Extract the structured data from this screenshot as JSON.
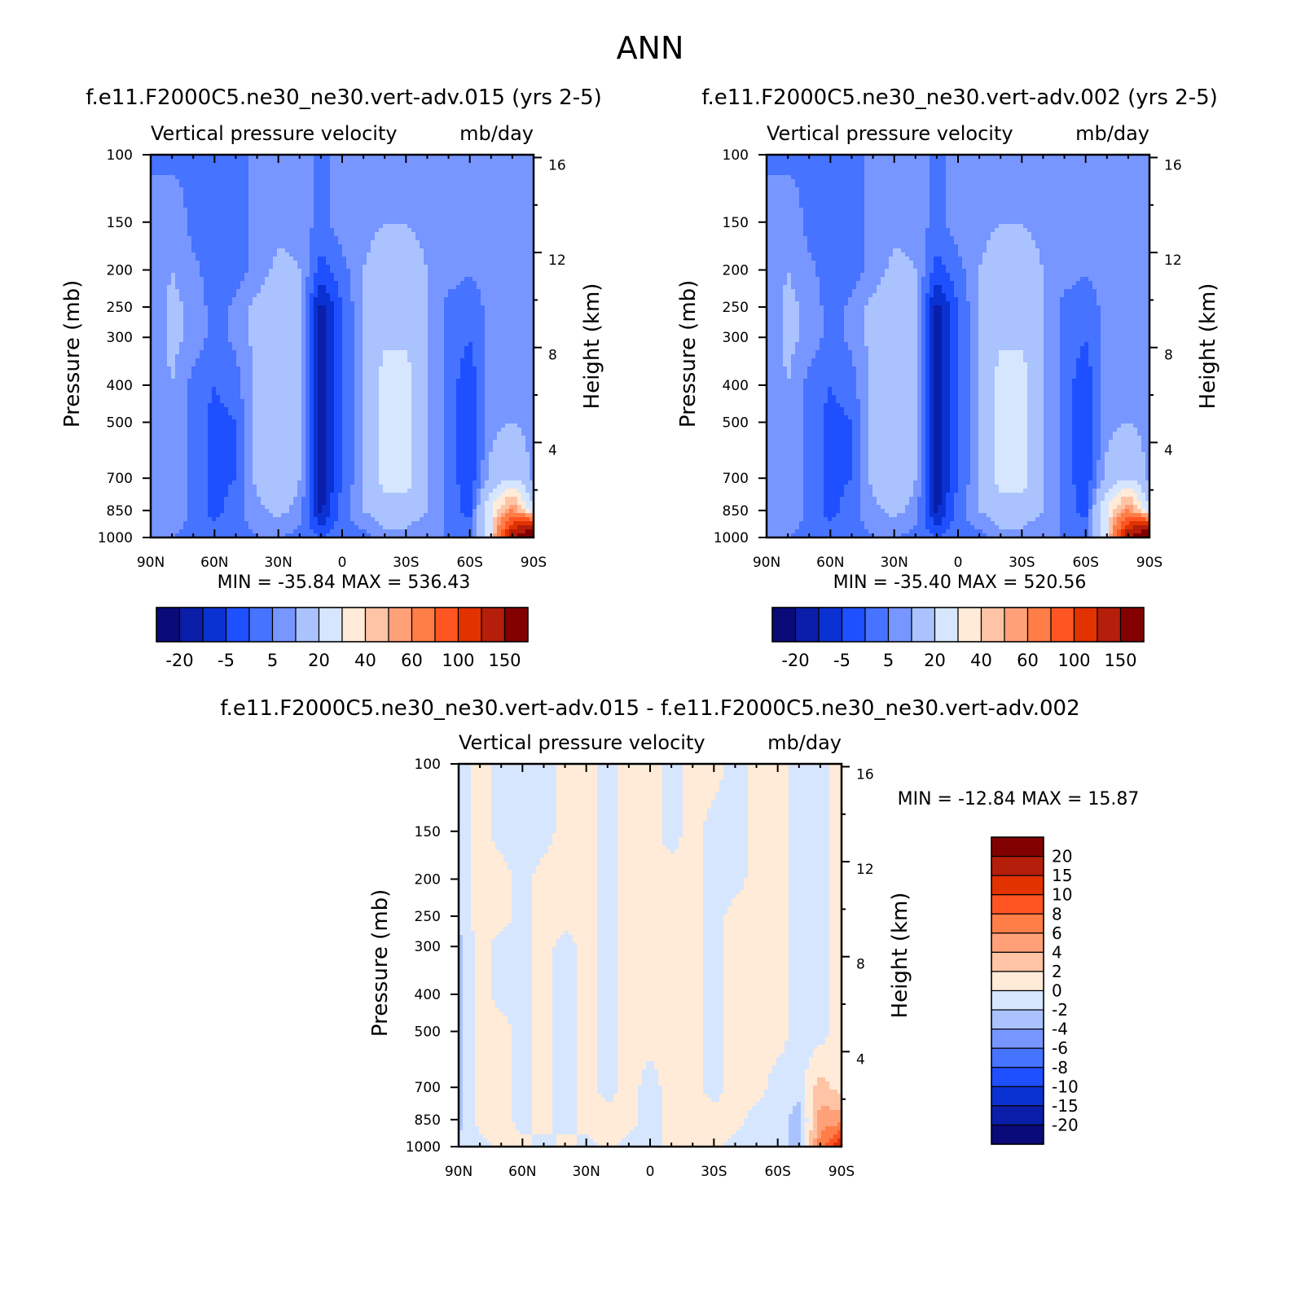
{
  "page": {
    "title": "ANN"
  },
  "panels": [
    {
      "case": "f.e11.F2000C5.ne30_ne30.vert-adv.015 (yrs 2-5)",
      "title": "Vertical pressure velocity",
      "units": "mb/day",
      "stats": "MIN = -35.84   MAX = 536.43"
    },
    {
      "case": "f.e11.F2000C5.ne30_ne30.vert-adv.002 (yrs 2-5)",
      "title": "Vertical pressure velocity",
      "units": "mb/day",
      "stats": "MIN = -35.40   MAX = 520.56"
    },
    {
      "case": "f.e11.F2000C5.ne30_ne30.vert-adv.015 - f.e11.F2000C5.ne30_ne30.vert-adv.002",
      "title": "Vertical pressure velocity",
      "units": "mb/day",
      "stats": "MIN = -12.84   MAX =   15.87"
    }
  ],
  "chart_data": [
    {
      "type": "heatmap",
      "title": "Vertical pressure velocity",
      "units": "mb/day",
      "xlabel": "",
      "ylabel": "Pressure (mb)",
      "ylabel_right": "Height (km)",
      "x_ticks": [
        "90N",
        "60N",
        "30N",
        "0",
        "30S",
        "60S",
        "90S"
      ],
      "y_ticks": [
        100,
        150,
        200,
        250,
        300,
        400,
        500,
        700,
        850,
        1000
      ],
      "y_right_ticks": [
        16,
        12,
        8,
        4
      ],
      "y_scale": "log",
      "min": -35.84,
      "max": 536.43,
      "colorbar": {
        "orientation": "horizontal",
        "labels": [
          "-20",
          "-5",
          "5",
          "20",
          "40",
          "60",
          "100",
          "150"
        ],
        "colors": [
          "#0a0a78",
          "#0a1eaa",
          "#0a32d2",
          "#1e50ff",
          "#4673ff",
          "#7896ff",
          "#aac3ff",
          "#d7e6ff",
          "#ffebd7",
          "#ffc3a5",
          "#ffa078",
          "#ff7d46",
          "#ff5523",
          "#e13200",
          "#b41e0a",
          "#820000"
        ]
      },
      "columns": [
        {
          "lat": 90,
          "v": [
            5,
            5,
            5,
            5,
            5,
            5,
            5,
            5,
            5,
            5
          ]
        },
        {
          "lat": 80,
          "v": [
            3,
            10,
            10,
            12,
            12,
            10,
            10,
            10,
            10,
            5
          ]
        },
        {
          "lat": 70,
          "v": [
            3,
            3,
            6,
            8,
            8,
            3,
            3,
            3,
            3,
            3
          ]
        },
        {
          "lat": 60,
          "v": [
            3,
            3,
            3,
            3,
            3,
            0,
            -2,
            -2,
            -2,
            3
          ]
        },
        {
          "lat": 50,
          "v": [
            3,
            3,
            3,
            6,
            6,
            3,
            0,
            0,
            3,
            3
          ]
        },
        {
          "lat": 40,
          "v": [
            6,
            6,
            6,
            12,
            12,
            12,
            12,
            12,
            8,
            5
          ]
        },
        {
          "lat": 30,
          "v": [
            8,
            8,
            12,
            18,
            18,
            18,
            18,
            18,
            12,
            5
          ]
        },
        {
          "lat": 20,
          "v": [
            8,
            8,
            10,
            10,
            10,
            10,
            10,
            10,
            8,
            3
          ]
        },
        {
          "lat": 10,
          "v": [
            3,
            3,
            -2,
            -12,
            -12,
            -12,
            -12,
            -12,
            -12,
            0
          ]
        },
        {
          "lat": 0,
          "v": [
            8,
            8,
            3,
            0,
            0,
            0,
            0,
            0,
            3,
            3
          ]
        },
        {
          "lat": -10,
          "v": [
            8,
            8,
            10,
            10,
            10,
            10,
            10,
            10,
            10,
            3
          ]
        },
        {
          "lat": -20,
          "v": [
            8,
            10,
            14,
            18,
            18,
            25,
            25,
            25,
            14,
            8
          ]
        },
        {
          "lat": -30,
          "v": [
            8,
            10,
            14,
            18,
            18,
            25,
            25,
            25,
            14,
            8
          ]
        },
        {
          "lat": -40,
          "v": [
            8,
            8,
            10,
            10,
            10,
            10,
            10,
            10,
            10,
            5
          ]
        },
        {
          "lat": -50,
          "v": [
            8,
            8,
            8,
            3,
            3,
            3,
            3,
            3,
            3,
            5
          ]
        },
        {
          "lat": -60,
          "v": [
            8,
            8,
            6,
            0,
            0,
            -4,
            -4,
            -4,
            -2,
            3
          ]
        },
        {
          "lat": -70,
          "v": [
            8,
            8,
            8,
            8,
            8,
            8,
            8,
            12,
            30,
            30
          ]
        },
        {
          "lat": -80,
          "v": [
            8,
            10,
            10,
            10,
            10,
            10,
            10,
            20,
            60,
            150
          ]
        },
        {
          "lat": -90,
          "v": [
            8,
            8,
            8,
            8,
            8,
            8,
            8,
            8,
            20,
            200
          ]
        }
      ]
    },
    {
      "type": "heatmap",
      "title": "Vertical pressure velocity",
      "units": "mb/day",
      "xlabel": "",
      "ylabel": "Pressure (mb)",
      "ylabel_right": "Height (km)",
      "x_ticks": [
        "90N",
        "60N",
        "30N",
        "0",
        "30S",
        "60S",
        "90S"
      ],
      "y_ticks": [
        100,
        150,
        200,
        250,
        300,
        400,
        500,
        700,
        850,
        1000
      ],
      "y_right_ticks": [
        16,
        12,
        8,
        4
      ],
      "y_scale": "log",
      "min": -35.4,
      "max": 520.56,
      "colorbar": {
        "orientation": "horizontal",
        "labels": [
          "-20",
          "-5",
          "5",
          "20",
          "40",
          "60",
          "100",
          "150"
        ],
        "colors": [
          "#0a0a78",
          "#0a1eaa",
          "#0a32d2",
          "#1e50ff",
          "#4673ff",
          "#7896ff",
          "#aac3ff",
          "#d7e6ff",
          "#ffebd7",
          "#ffc3a5",
          "#ffa078",
          "#ff7d46",
          "#ff5523",
          "#e13200",
          "#b41e0a",
          "#820000"
        ]
      },
      "columns": [
        {
          "lat": 90,
          "v": [
            5,
            5,
            5,
            5,
            5,
            5,
            5,
            5,
            5,
            5
          ]
        },
        {
          "lat": 80,
          "v": [
            3,
            10,
            10,
            12,
            12,
            10,
            10,
            10,
            10,
            5
          ]
        },
        {
          "lat": 70,
          "v": [
            3,
            3,
            6,
            8,
            8,
            3,
            3,
            3,
            3,
            3
          ]
        },
        {
          "lat": 60,
          "v": [
            3,
            3,
            3,
            3,
            3,
            0,
            -2,
            -2,
            -2,
            3
          ]
        },
        {
          "lat": 50,
          "v": [
            3,
            3,
            3,
            6,
            6,
            3,
            0,
            0,
            3,
            3
          ]
        },
        {
          "lat": 40,
          "v": [
            6,
            6,
            6,
            12,
            12,
            12,
            12,
            12,
            8,
            5
          ]
        },
        {
          "lat": 30,
          "v": [
            8,
            8,
            12,
            18,
            18,
            18,
            18,
            18,
            12,
            5
          ]
        },
        {
          "lat": 20,
          "v": [
            8,
            8,
            10,
            10,
            10,
            10,
            10,
            10,
            8,
            3
          ]
        },
        {
          "lat": 10,
          "v": [
            3,
            3,
            -2,
            -12,
            -12,
            -12,
            -12,
            -12,
            -12,
            0
          ]
        },
        {
          "lat": 0,
          "v": [
            8,
            8,
            3,
            0,
            0,
            0,
            0,
            0,
            3,
            3
          ]
        },
        {
          "lat": -10,
          "v": [
            8,
            8,
            10,
            10,
            10,
            10,
            10,
            10,
            10,
            3
          ]
        },
        {
          "lat": -20,
          "v": [
            8,
            10,
            14,
            18,
            18,
            25,
            25,
            25,
            14,
            8
          ]
        },
        {
          "lat": -30,
          "v": [
            8,
            10,
            14,
            18,
            18,
            25,
            25,
            25,
            14,
            8
          ]
        },
        {
          "lat": -40,
          "v": [
            8,
            8,
            10,
            10,
            10,
            10,
            10,
            10,
            10,
            5
          ]
        },
        {
          "lat": -50,
          "v": [
            8,
            8,
            8,
            3,
            3,
            3,
            3,
            3,
            3,
            5
          ]
        },
        {
          "lat": -60,
          "v": [
            8,
            8,
            6,
            0,
            0,
            -4,
            -4,
            -4,
            -2,
            3
          ]
        },
        {
          "lat": -70,
          "v": [
            8,
            8,
            8,
            8,
            8,
            8,
            8,
            12,
            30,
            30
          ]
        },
        {
          "lat": -80,
          "v": [
            8,
            10,
            10,
            10,
            10,
            10,
            10,
            20,
            60,
            150
          ]
        },
        {
          "lat": -90,
          "v": [
            8,
            8,
            8,
            8,
            8,
            8,
            8,
            8,
            20,
            200
          ]
        }
      ]
    },
    {
      "type": "heatmap",
      "title": "Vertical pressure velocity",
      "units": "mb/day",
      "xlabel": "",
      "ylabel": "Pressure (mb)",
      "ylabel_right": "Height (km)",
      "x_ticks": [
        "90N",
        "60N",
        "30N",
        "0",
        "30S",
        "60S",
        "90S"
      ],
      "y_ticks": [
        100,
        150,
        200,
        250,
        300,
        400,
        500,
        700,
        850,
        1000
      ],
      "y_right_ticks": [
        16,
        12,
        8,
        4
      ],
      "y_scale": "log",
      "min": -12.84,
      "max": 15.87,
      "colorbar": {
        "orientation": "vertical",
        "labels": [
          "20",
          "15",
          "10",
          "8",
          "6",
          "4",
          "2",
          "0",
          "-2",
          "-4",
          "-6",
          "-8",
          "-10",
          "-15",
          "-20"
        ],
        "colors": [
          "#0a0a78",
          "#0a1eaa",
          "#0a32d2",
          "#1e50ff",
          "#4673ff",
          "#7896ff",
          "#aac3ff",
          "#d7e6ff",
          "#ffebd7",
          "#ffc3a5",
          "#ffa078",
          "#ff7d46",
          "#ff5523",
          "#e13200",
          "#b41e0a",
          "#820000"
        ]
      },
      "columns": [
        {
          "lat": 90,
          "v": [
            -1,
            -1,
            -1,
            -1,
            -3,
            -3,
            -3,
            -3,
            -3,
            -1
          ]
        },
        {
          "lat": 80,
          "v": [
            1,
            1,
            1,
            1,
            1,
            1,
            1,
            1,
            1,
            -1
          ]
        },
        {
          "lat": 70,
          "v": [
            -1,
            -1,
            1,
            1,
            -1,
            -1,
            1,
            1,
            1,
            1
          ]
        },
        {
          "lat": 60,
          "v": [
            -1,
            -1,
            -1,
            -1,
            -1,
            -1,
            -1,
            -1,
            -1,
            1
          ]
        },
        {
          "lat": 50,
          "v": [
            -1,
            -1,
            1,
            1,
            1,
            1,
            1,
            1,
            1,
            -1
          ]
        },
        {
          "lat": 40,
          "v": [
            1,
            1,
            1,
            1,
            -1,
            -1,
            -1,
            -1,
            -1,
            1
          ]
        },
        {
          "lat": 30,
          "v": [
            1,
            1,
            1,
            1,
            1,
            1,
            1,
            1,
            1,
            -1
          ]
        },
        {
          "lat": 20,
          "v": [
            -1,
            -1,
            -1,
            -1,
            -1,
            -1,
            -1,
            -1,
            1,
            1
          ]
        },
        {
          "lat": 10,
          "v": [
            1,
            1,
            1,
            1,
            1,
            1,
            1,
            1,
            1,
            -1
          ]
        },
        {
          "lat": 0,
          "v": [
            1,
            1,
            1,
            1,
            1,
            1,
            1,
            -1,
            -1,
            -1
          ]
        },
        {
          "lat": -10,
          "v": [
            -1,
            -1,
            1,
            1,
            1,
            1,
            1,
            1,
            1,
            1
          ]
        },
        {
          "lat": -20,
          "v": [
            1,
            1,
            1,
            1,
            1,
            1,
            1,
            1,
            1,
            1
          ]
        },
        {
          "lat": -30,
          "v": [
            1,
            -1,
            -1,
            -1,
            -1,
            -1,
            -1,
            -1,
            1,
            1
          ]
        },
        {
          "lat": -40,
          "v": [
            -1,
            -1,
            -1,
            1,
            1,
            1,
            1,
            1,
            1,
            -1
          ]
        },
        {
          "lat": -50,
          "v": [
            1,
            1,
            1,
            1,
            1,
            1,
            1,
            1,
            -1,
            -1
          ]
        },
        {
          "lat": -60,
          "v": [
            1,
            1,
            1,
            1,
            1,
            1,
            1,
            -1,
            -1,
            -1
          ]
        },
        {
          "lat": -70,
          "v": [
            -1,
            -1,
            -1,
            -1,
            -1,
            -1,
            -1,
            -1,
            -3,
            -3
          ]
        },
        {
          "lat": -80,
          "v": [
            -1,
            -1,
            -1,
            -1,
            -1,
            -1,
            -1,
            3,
            5,
            7
          ]
        },
        {
          "lat": -90,
          "v": [
            1,
            1,
            1,
            1,
            1,
            1,
            1,
            1,
            5,
            12
          ]
        }
      ]
    }
  ]
}
